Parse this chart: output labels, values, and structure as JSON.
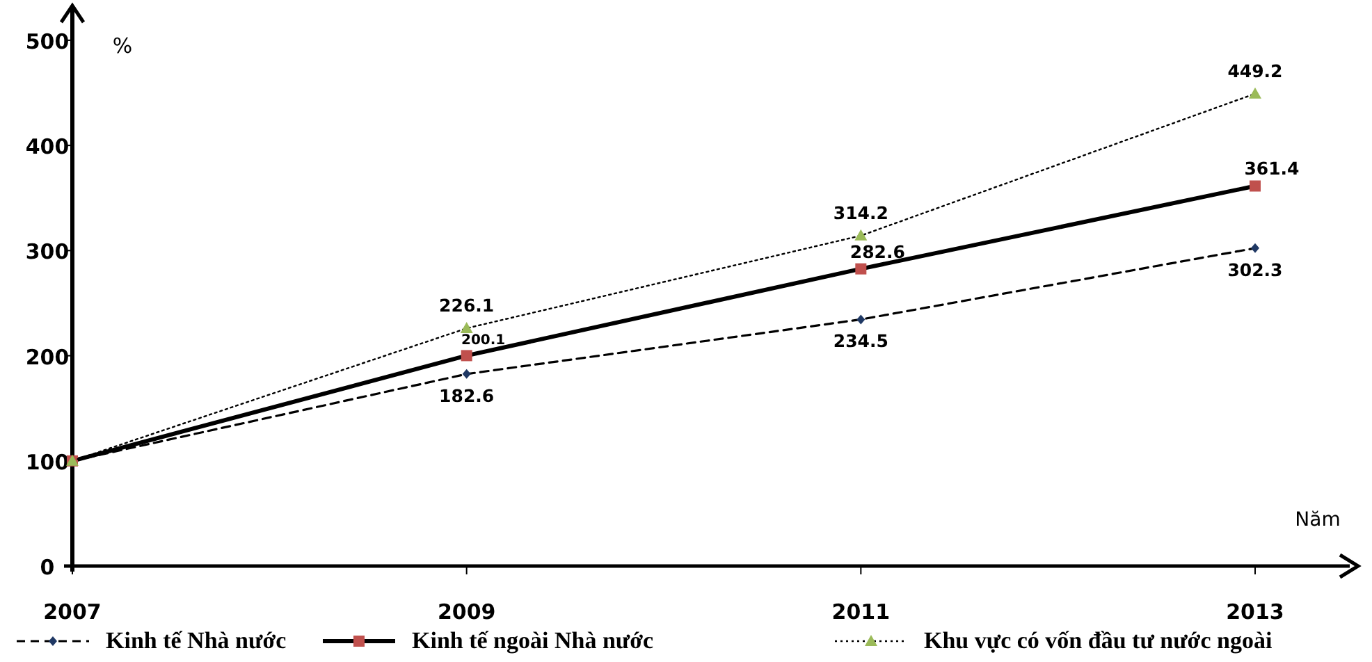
{
  "chart_data": {
    "type": "line",
    "xlabel": "Năm",
    "ylabel": "%",
    "categories": [
      "2007",
      "2009",
      "2011",
      "2013"
    ],
    "ylim": [
      0,
      533
    ],
    "yticks": [
      0,
      100,
      200,
      300,
      400,
      500
    ],
    "grid": false,
    "legend": "bottom",
    "series": [
      {
        "name": "Kinh tế Nhà nước",
        "color": "#1f3864",
        "values": [
          100,
          182.6,
          234.5,
          302.3
        ],
        "value_labels": [
          null,
          "182.6",
          "234.5",
          "302.3"
        ],
        "marker": "diamond",
        "line_style": "dashed"
      },
      {
        "name": "Kinh tế ngoài Nhà nước",
        "color": "#c0504d",
        "values": [
          100,
          200.1,
          282.6,
          361.4
        ],
        "value_labels": [
          null,
          "200.1",
          "282.6",
          "361.4"
        ],
        "marker": "square",
        "line_style": "solid"
      },
      {
        "name": "Khu vực có vốn đầu tư nước ngoài",
        "color": "#9bbb59",
        "values": [
          100,
          226.1,
          314.2,
          449.2
        ],
        "value_labels": [
          null,
          "226.1",
          "314.2",
          "449.2"
        ],
        "marker": "triangle",
        "line_style": "dotted"
      }
    ]
  }
}
